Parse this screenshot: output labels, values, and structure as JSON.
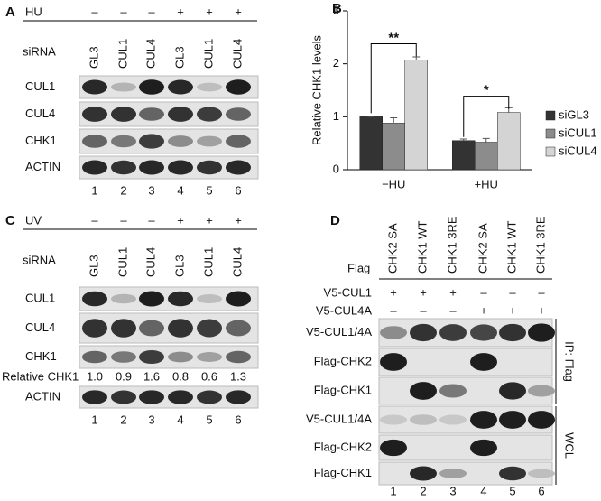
{
  "panels": {
    "a": {
      "letter": "A",
      "treatment": "HU",
      "signs": [
        "–",
        "–",
        "–",
        "+",
        "+",
        "+"
      ],
      "sirna_label": "siRNA",
      "sirna": [
        "GL3",
        "CUL1",
        "CUL4",
        "GL3",
        "CUL1",
        "CUL4"
      ],
      "blots": [
        "CUL1",
        "CUL4",
        "CHK1",
        "ACTIN"
      ],
      "lanes": [
        "1",
        "2",
        "3",
        "4",
        "5",
        "6"
      ]
    },
    "c": {
      "letter": "C",
      "treatment": "UV",
      "signs": [
        "–",
        "–",
        "–",
        "+",
        "+",
        "+"
      ],
      "sirna_label": "siRNA",
      "sirna": [
        "GL3",
        "CUL1",
        "CUL4",
        "GL3",
        "CUL1",
        "CUL4"
      ],
      "blots": [
        "CUL1",
        "CUL4",
        "CHK1",
        "ACTIN"
      ],
      "relative_label": "Relative CHK1",
      "relative_values": [
        "1.0",
        "0.9",
        "1.6",
        "0.8",
        "0.6",
        "1.3"
      ],
      "lanes": [
        "1",
        "2",
        "3",
        "4",
        "5",
        "6"
      ]
    },
    "d": {
      "letter": "D",
      "flag_label": "Flag",
      "constructs": [
        "CHK2 SA",
        "CHK1 WT",
        "CHK1 3RE",
        "CHK2 SA",
        "CHK1 WT",
        "CHK1 3RE"
      ],
      "rows": [
        {
          "label": "V5-CUL1",
          "signs": [
            "+",
            "+",
            "+",
            "–",
            "–",
            "–"
          ]
        },
        {
          "label": "V5-CUL4A",
          "signs": [
            "–",
            "–",
            "–",
            "+",
            "+",
            "+"
          ]
        }
      ],
      "ip_blots": [
        "V5-CUL1/4A",
        "Flag-CHK2",
        "Flag-CHK1"
      ],
      "ip_label": "IP: Flag",
      "wcl_blots": [
        "V5-CUL1/4A",
        "Flag-CHK2",
        "Flag-CHK1"
      ],
      "wcl_label": "WCL",
      "lanes": [
        "1",
        "2",
        "3",
        "4",
        "5",
        "6"
      ]
    }
  },
  "chart_data": {
    "type": "bar",
    "letter": "B",
    "y_label": "Relative CHK1 levels",
    "categories": [
      "−HU",
      "+HU"
    ],
    "series": [
      {
        "name": "siGL3",
        "color": "#333333",
        "values": [
          1.0,
          0.55
        ],
        "errors": [
          0,
          0.03
        ]
      },
      {
        "name": "siCUL1",
        "color": "#8c8c8c",
        "values": [
          0.88,
          0.52
        ],
        "errors": [
          0.1,
          0.07
        ]
      },
      {
        "name": "siCUL4",
        "color": "#d4d4d4",
        "values": [
          2.07,
          1.08
        ],
        "errors": [
          0.06,
          0.09
        ]
      }
    ],
    "annotations": [
      "**",
      "*"
    ],
    "ylim": [
      0,
      3
    ],
    "yticks": [
      0,
      1,
      2,
      3
    ],
    "legend": "right"
  }
}
